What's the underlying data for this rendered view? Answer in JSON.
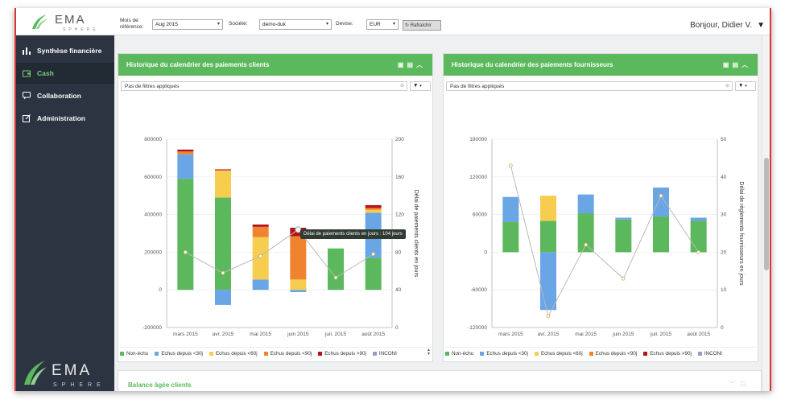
{
  "app": {
    "brand_top": "EMA",
    "brand_sub": "SPHERE"
  },
  "colors": {
    "green": "#5cb85c",
    "blue": "#6aa5e6",
    "yellow": "#f6cd4e",
    "orange": "#f0832f",
    "darkred": "#b3141a",
    "sidebar": "#2b3440"
  },
  "header": {
    "mois_label": "Mois de référence:",
    "mois_value": "Aug 2015",
    "societe_label": "Société:",
    "societe_value": "demo-duk",
    "devise_label": "Devise:",
    "devise_value": "EUR",
    "refresh_label": "Rafraîchir",
    "greeting": "Bonjour, Didier V."
  },
  "sidebar": {
    "items": [
      {
        "label": "Synthèse financière",
        "icon": "bar-chart-icon"
      },
      {
        "label": "Cash",
        "icon": "wallet-icon",
        "active": true
      },
      {
        "label": "Collaboration",
        "icon": "chat-icon"
      },
      {
        "label": "Administration",
        "icon": "edit-icon"
      }
    ]
  },
  "panel_clients": {
    "title": "Historique du calendrier des paiements clients",
    "filter_text": "Pas de filtres appliqués",
    "tooltip": "Délai de paiements clients en jours : 104 jours",
    "legend": [
      "Non-échu",
      "Echus depuis <30j",
      "Echus depuis <60j",
      "Echus depuis <90j",
      "Echus depuis >90j",
      "INCONI"
    ]
  },
  "panel_fournisseurs": {
    "title": "Historique du calendrier des paiements fournisseurs",
    "filter_text": "Pas de filtres appliqués",
    "legend": [
      "Non-échu",
      "Echus depuis <30j",
      "Echus depuis <60j",
      "Echus depuis <90j",
      "Echus depuis >90j",
      "INCONI"
    ]
  },
  "panel_balance": {
    "title": "Balance âgée clients"
  },
  "chart_data": [
    {
      "type": "bar",
      "stacked": true,
      "title": "Historique du calendrier des paiements clients",
      "categories": [
        "mars 2015",
        "avr. 2015",
        "mai 2015",
        "juin 2015",
        "juil. 2015",
        "août 2015"
      ],
      "ylim": [
        -200000,
        800000
      ],
      "yticks": [
        "-200000",
        "0",
        "200000",
        "400000",
        "600000",
        "800000"
      ],
      "y2label": "Délai de paiements clients en jours",
      "y2lim": [
        0,
        200
      ],
      "y2ticks": [
        "0",
        "40",
        "80",
        "120",
        "160",
        "200"
      ],
      "series": [
        {
          "name": "Non-échu",
          "color": "#5cb85c",
          "values": [
            590000,
            490000,
            0,
            0,
            220000,
            170000
          ]
        },
        {
          "name": "Echus depuis <30j",
          "color": "#6aa5e6",
          "values": [
            130000,
            -80000,
            55000,
            -12000,
            0,
            240000
          ]
        },
        {
          "name": "Echus depuis <60j",
          "color": "#f6cd4e",
          "values": [
            0,
            145000,
            225000,
            55000,
            0,
            15000
          ]
        },
        {
          "name": "Echus depuis <90j",
          "color": "#f0832f",
          "values": [
            15000,
            0,
            55000,
            230000,
            0,
            10000
          ]
        },
        {
          "name": "Echus depuis >90j",
          "color": "#b3141a",
          "values": [
            10000,
            5000,
            12000,
            45000,
            0,
            15000
          ]
        }
      ],
      "line": {
        "name": "Délai de paiements clients en jours",
        "values": [
          80,
          58,
          76,
          104,
          53,
          78
        ]
      },
      "legend_position": "bottom"
    },
    {
      "type": "bar",
      "stacked": true,
      "title": "Historique du calendrier des paiements fournisseurs",
      "categories": [
        "mars 2015",
        "avr. 2015",
        "mai 2015",
        "juin 2015",
        "juil. 2015",
        "août 2015"
      ],
      "ylim": [
        -120000,
        180000
      ],
      "yticks": [
        "-120000",
        "-60000",
        "0",
        "60000",
        "120000",
        "180000"
      ],
      "y2label": "Délai de règlements fournisseurs en jours",
      "y2lim": [
        0,
        50
      ],
      "y2ticks": [
        "0",
        "10",
        "20",
        "30",
        "40",
        "50"
      ],
      "series": [
        {
          "name": "Non-échu",
          "color": "#5cb85c",
          "values": [
            48000,
            50000,
            62000,
            52000,
            57000,
            50000
          ]
        },
        {
          "name": "Echus depuis <30j",
          "color": "#6aa5e6",
          "values": [
            40000,
            -92000,
            30000,
            3000,
            46000,
            5000
          ]
        },
        {
          "name": "Echus depuis <60j",
          "color": "#f6cd4e",
          "values": [
            0,
            40000,
            0,
            0,
            0,
            0
          ]
        }
      ],
      "line": {
        "name": "Délai de règlements fournisseurs en jours",
        "values": [
          43,
          3,
          22,
          13,
          35,
          20
        ]
      },
      "legend_position": "bottom"
    }
  ]
}
